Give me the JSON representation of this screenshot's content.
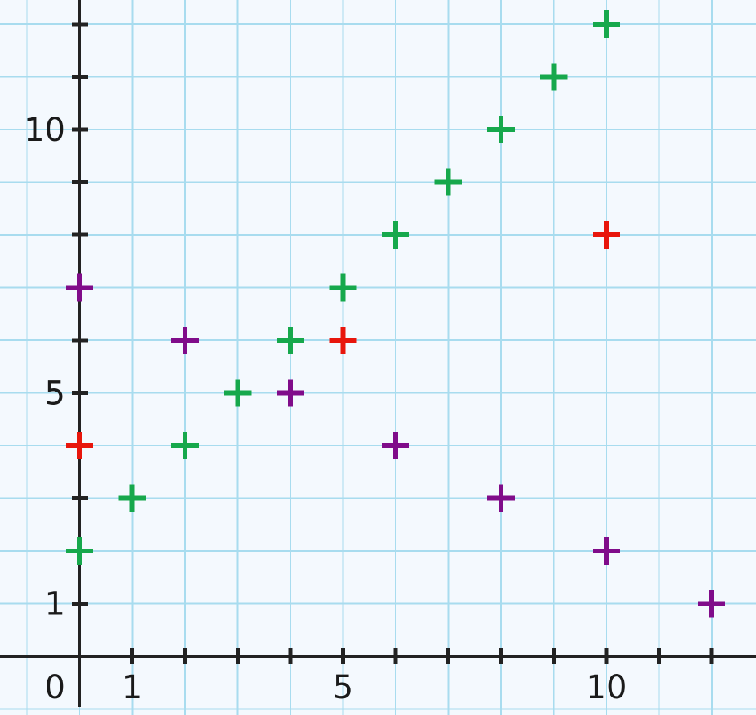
{
  "chart_data": {
    "type": "scatter",
    "title": "",
    "xlabel": "",
    "ylabel": "",
    "xlim": [
      -1,
      12.5
    ],
    "ylim": [
      -1,
      12.5
    ],
    "grid": true,
    "marker": "plus",
    "x_tick_labels": [
      {
        "value": 0,
        "label": "0"
      },
      {
        "value": 1,
        "label": "1"
      },
      {
        "value": 5,
        "label": "5"
      },
      {
        "value": 10,
        "label": "10"
      }
    ],
    "y_tick_labels": [
      {
        "value": 1,
        "label": "1"
      },
      {
        "value": 5,
        "label": "5"
      },
      {
        "value": 10,
        "label": "10"
      }
    ],
    "series": [
      {
        "color": "#16a84c",
        "points": [
          [
            0,
            2
          ],
          [
            1,
            3
          ],
          [
            2,
            4
          ],
          [
            3,
            5
          ],
          [
            4,
            6
          ],
          [
            5,
            7
          ],
          [
            6,
            8
          ],
          [
            7,
            9
          ],
          [
            8,
            10
          ],
          [
            9,
            11
          ],
          [
            10,
            12
          ]
        ]
      },
      {
        "color": "#e8160c",
        "points": [
          [
            0,
            4
          ],
          [
            5,
            6
          ],
          [
            10,
            8
          ]
        ]
      },
      {
        "color": "#800c8a",
        "points": [
          [
            0,
            7
          ],
          [
            2,
            6
          ],
          [
            4,
            5
          ],
          [
            6,
            4
          ],
          [
            8,
            3
          ],
          [
            10,
            2
          ],
          [
            12,
            1
          ]
        ]
      }
    ]
  }
}
